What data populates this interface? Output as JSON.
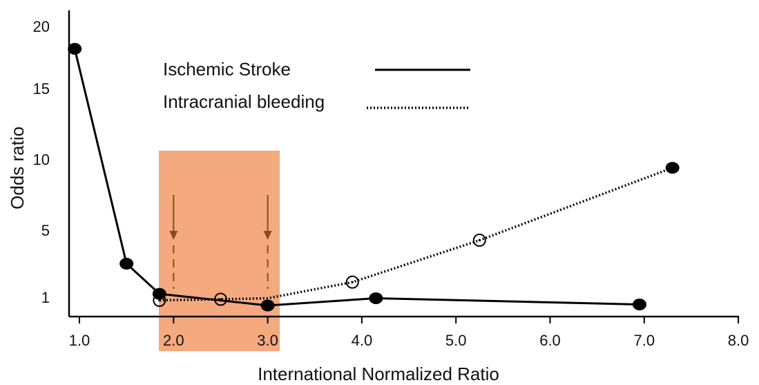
{
  "chart_data": {
    "type": "line",
    "title": "",
    "xlabel": "International Normalized Ratio",
    "ylabel": "Odds ratio",
    "xlim": [
      0.95,
      8.0
    ],
    "x_ticks": [
      1.0,
      2.0,
      3.0,
      4.0,
      5.0,
      6.0,
      7.0,
      8.0
    ],
    "x_tick_labels": [
      "1.0",
      "2.0",
      "3.0",
      "4.0",
      "5.0",
      "6.0",
      "7.0",
      "8.0"
    ],
    "y_ticks": [
      1,
      5,
      10,
      15,
      20
    ],
    "y_tick_labels": [
      "1",
      "5",
      "10",
      "15",
      "20"
    ],
    "y_axis_top_value": 20,
    "grid": false,
    "legend_position": "top-center",
    "therapeutic_range": {
      "x": [
        1.85,
        3.1
      ],
      "color": "#f5a97f",
      "markers_at": [
        2.0,
        3.0
      ],
      "marker_color": "#8a4a22"
    },
    "series": [
      {
        "name": "Ischemic Stroke",
        "style": "solid",
        "marker": "filled-circle",
        "color": "#000000",
        "points": [
          {
            "x": 0.95,
            "y": 17.8
          },
          {
            "x": 1.5,
            "y": 3.0
          },
          {
            "x": 1.85,
            "y": 1.2
          },
          {
            "x": 3.0,
            "y": 0.6
          },
          {
            "x": 4.15,
            "y": 0.95
          },
          {
            "x": 6.95,
            "y": 0.65
          }
        ]
      },
      {
        "name": "Intracranial bleeding",
        "style": "dotted",
        "marker": "open-circle",
        "color": "#000000",
        "points": [
          {
            "x": 1.85,
            "y": 0.85
          },
          {
            "x": 2.5,
            "y": 0.9,
            "marker": "open-circle"
          },
          {
            "x": 3.0,
            "y": 0.95,
            "marker": "none"
          },
          {
            "x": 3.9,
            "y": 1.9,
            "marker": "open-circle"
          },
          {
            "x": 5.25,
            "y": 4.4,
            "marker": "open-circle"
          },
          {
            "x": 7.3,
            "y": 9.4,
            "marker": "filled-circle"
          }
        ]
      }
    ]
  }
}
